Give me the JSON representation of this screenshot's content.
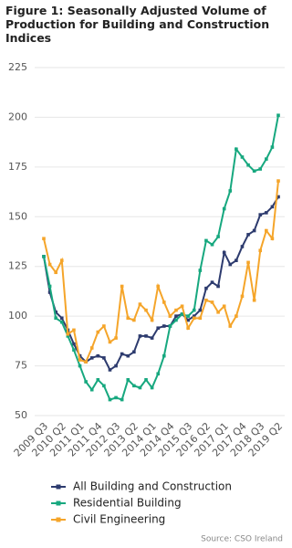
{
  "chart_data": {
    "type": "line",
    "title": "Figure 1: Seasonally Adjusted Volume of Production for Building and Construction Indices",
    "source": "Source: CSO Ireland",
    "categories": [
      "2009 Q3",
      null,
      null,
      "2010 Q2",
      null,
      null,
      "2011 Q1",
      null,
      null,
      "2011 Q4",
      null,
      null,
      "2012 Q3",
      null,
      null,
      "2013 Q2",
      null,
      null,
      "2014 Q1",
      null,
      null,
      "2014 Q4",
      null,
      null,
      "2015 Q3",
      null,
      null,
      "2016 Q2",
      null,
      null,
      "2017 Q1",
      null,
      null,
      "2017 Q4",
      null,
      null,
      "2018 Q3",
      null,
      null,
      "2019 Q2"
    ],
    "series": [
      {
        "name": "All Building and Construction",
        "color": "#2d3b6e",
        "values": [
          130,
          112,
          102,
          99,
          93,
          86,
          80,
          77,
          79,
          80,
          79,
          73,
          75,
          81,
          80,
          82,
          90,
          90,
          89,
          94,
          95,
          95,
          100,
          101,
          98,
          100,
          103,
          114,
          117,
          115,
          132,
          126,
          128,
          135,
          141,
          143,
          151,
          152,
          155,
          160
        ]
      },
      {
        "name": "Residential Building",
        "color": "#17a87f",
        "values": [
          130,
          115,
          99,
          97,
          90,
          83,
          75,
          67,
          63,
          68,
          65,
          58,
          59,
          58,
          68,
          65,
          64,
          68,
          64,
          71,
          80,
          95,
          98,
          101,
          100,
          103,
          123,
          138,
          136,
          140,
          154,
          163,
          184,
          180,
          176,
          173,
          174,
          179,
          185,
          201
        ]
      },
      {
        "name": "Civil Engineering",
        "color": "#f5a52a",
        "values": [
          139,
          126,
          122,
          128,
          91,
          93,
          78,
          77,
          84,
          92,
          95,
          87,
          89,
          115,
          99,
          98,
          106,
          103,
          98,
          115,
          107,
          100,
          103,
          105,
          94,
          99,
          99,
          108,
          107,
          102,
          105,
          95,
          100,
          110,
          127,
          108,
          133,
          143,
          139,
          168
        ]
      }
    ],
    "ylim": [
      50,
      225
    ],
    "yticks": [
      50,
      75,
      100,
      125,
      150,
      175,
      200,
      225
    ],
    "grid": true
  }
}
